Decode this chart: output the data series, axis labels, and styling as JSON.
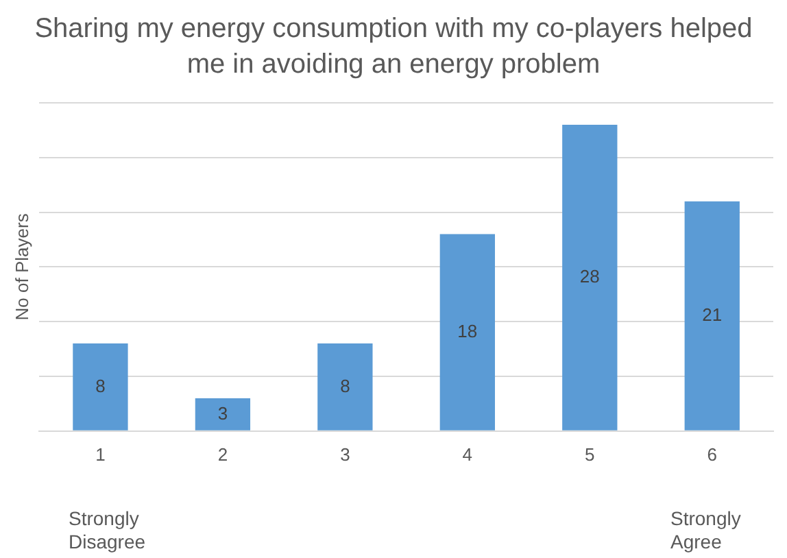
{
  "chart_data": {
    "type": "bar",
    "title": "Sharing my energy consumption with my co-players helped me in avoiding an energy problem",
    "ylabel": "No of Players",
    "categories": [
      "1",
      "2",
      "3",
      "4",
      "5",
      "6"
    ],
    "values": [
      8,
      3,
      8,
      18,
      28,
      21
    ],
    "color": "#5b9bd5",
    "ylim": [
      0,
      30
    ],
    "yticks": [
      {
        "value": 0,
        "label": null
      },
      {
        "value": 5,
        "label": null
      },
      {
        "value": 10,
        "label": null
      },
      {
        "value": 15,
        "label": null
      },
      {
        "value": 20,
        "label": null
      },
      {
        "value": 25,
        "label": null
      },
      {
        "value": 30,
        "label": null
      }
    ],
    "tick_labels": "x",
    "grid": "y",
    "data_labels": true,
    "legend": false,
    "annotations": [
      "Strongly Disagree",
      "Strongly Agree"
    ]
  }
}
